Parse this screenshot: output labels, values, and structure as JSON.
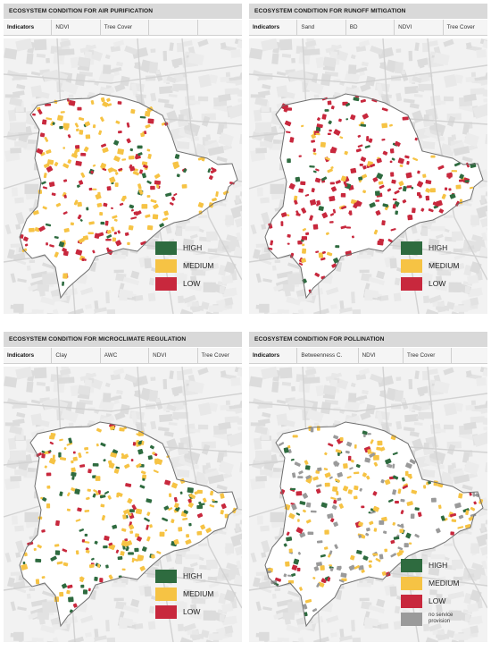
{
  "colors": {
    "high": "#2e6b3f",
    "medium": "#f6c344",
    "low": "#c8283d",
    "no_service": "#9a9a9a",
    "title_bar": "#d9d9d9",
    "map_background": "#f2f2f2",
    "boundary": "#707070"
  },
  "panels": [
    {
      "title": "ECOSYSTEM CONDITION FOR AIR PURIFICATION",
      "indicators_label": "Indicators",
      "indicators": [
        "NDVI",
        "Tree Cover",
        ""
      ],
      "legend": [
        "HIGH",
        "MEDIUM",
        "LOW"
      ]
    },
    {
      "title": "ECOSYSTEM CONDITION FOR RUNOFF MITIGATION",
      "indicators_label": "Indicators",
      "indicators": [
        "Sand",
        "BD",
        "NDVI",
        "Tree Cover"
      ],
      "legend": [
        "HIGH",
        "MEDIUM",
        "LOW"
      ]
    },
    {
      "title": "ECOSYSTEM CONDITION FOR MICROCLIMATE REGULATION",
      "indicators_label": "Indicators",
      "indicators": [
        "Clay",
        "AWC",
        "NDVI",
        "Tree Cover"
      ],
      "legend": [
        "HIGH",
        "MEDIUM",
        "LOW"
      ]
    },
    {
      "title": "ECOSYSTEM CONDITION FOR POLLINATION",
      "indicators_label": "Indicators",
      "indicators": [
        "Betweenness C.",
        "NDVI",
        "Tree Cover"
      ],
      "legend": [
        "HIGH",
        "MEDIUM",
        "LOW",
        "no service provision"
      ]
    }
  ]
}
